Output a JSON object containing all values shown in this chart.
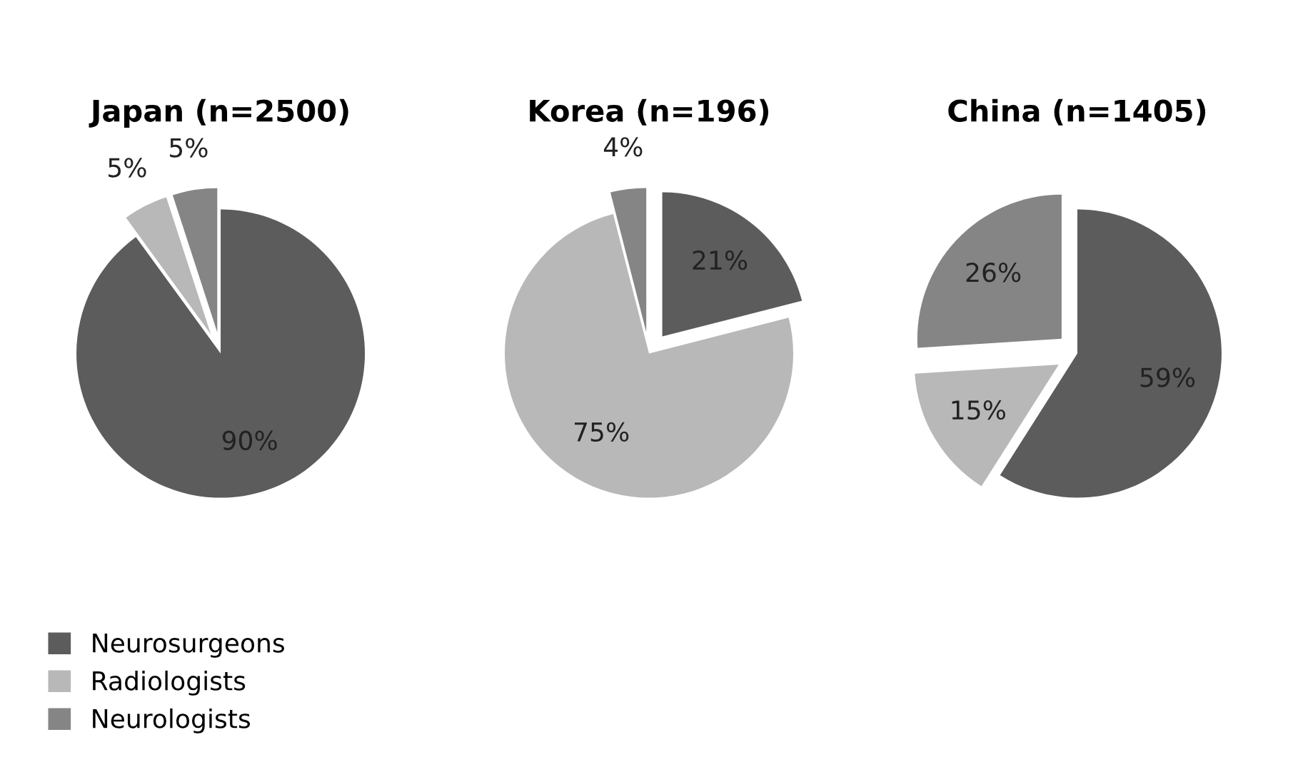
{
  "chart_data": [
    {
      "type": "pie",
      "title": "Japan (n=2500)",
      "categories": [
        "Neurosurgeons",
        "Radiologists",
        "Neurologists"
      ],
      "values": [
        90,
        5,
        5
      ],
      "colors": [
        "#5c5c5c",
        "#b8b8b8",
        "#858585"
      ],
      "value_labels": [
        "90%",
        "5%",
        "5%"
      ],
      "legend": "bottom left"
    },
    {
      "type": "pie",
      "title": "Korea (n=196)",
      "categories": [
        null,
        null,
        null
      ],
      "values": [
        21,
        75,
        4
      ],
      "colors": [
        "#5c5c5c",
        "#b8b8b8",
        "#858585"
      ],
      "value_labels": [
        "21%",
        "75%",
        "4%"
      ]
    },
    {
      "type": "pie",
      "title": "China (n=1405)",
      "categories": [
        null,
        null,
        null
      ],
      "values": [
        59,
        15,
        26
      ],
      "colors": [
        "#5c5c5c",
        "#b8b8b8",
        "#858585"
      ],
      "value_labels": [
        "59%",
        "15%",
        "26%"
      ]
    }
  ]
}
